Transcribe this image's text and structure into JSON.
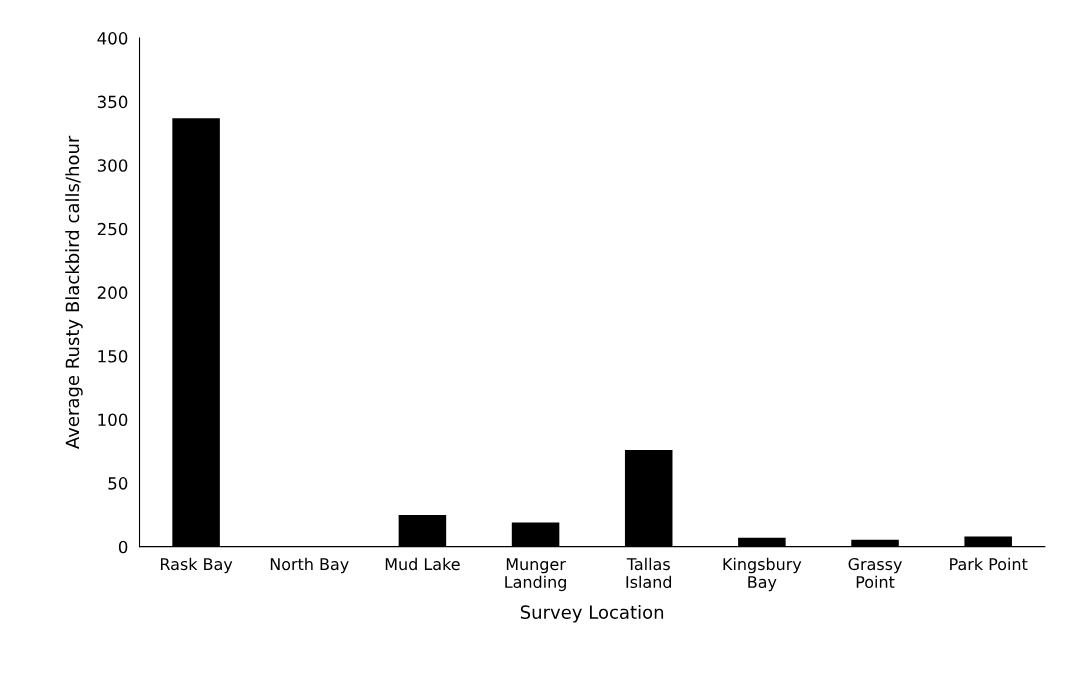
{
  "chart_data": {
    "type": "bar",
    "xlabel": "Survey Location",
    "ylabel": "Average Rusty Blackbird calls/hour",
    "categories": [
      "Rask Bay",
      "North Bay",
      "Mud Lake",
      "Munger\nLanding",
      "Tallas\nIsland",
      "Kingsbury\nBay",
      "Grassy\nPoint",
      "Park Point"
    ],
    "values": [
      337,
      0.5,
      25,
      19,
      76,
      7,
      5.5,
      8
    ],
    "color": "#000000",
    "ylim": [
      0,
      400
    ],
    "yticks": [
      0,
      50,
      100,
      150,
      200,
      250,
      300,
      350,
      400
    ],
    "grid": false
  }
}
